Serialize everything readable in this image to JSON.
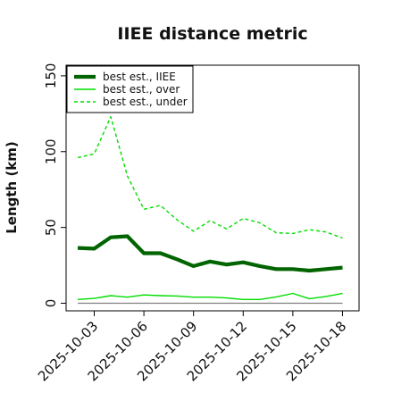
{
  "chart_data": {
    "type": "line",
    "title": "IIEE distance metric",
    "ylabel": "Length (km)",
    "xlabel": "",
    "x": [
      "2025-10-02",
      "2025-10-03",
      "2025-10-04",
      "2025-10-05",
      "2025-10-06",
      "2025-10-07",
      "2025-10-08",
      "2025-10-09",
      "2025-10-10",
      "2025-10-11",
      "2025-10-12",
      "2025-10-13",
      "2025-10-14",
      "2025-10-15",
      "2025-10-16",
      "2025-10-17",
      "2025-10-18"
    ],
    "xticks": [
      "2025-10-03",
      "2025-10-06",
      "2025-10-09",
      "2025-10-12",
      "2025-10-15",
      "2025-10-18"
    ],
    "yticks": [
      0,
      50,
      100,
      150
    ],
    "ylim": [
      -5,
      157
    ],
    "xlim": [
      "2025-10-01T07:12",
      "2025-10-19T00:00"
    ],
    "grid": false,
    "legend_position": "top-left",
    "series": [
      {
        "name": "best est., IIEE",
        "color": "#006400",
        "style": "solid",
        "width": 4.2,
        "values": [
          36.5,
          36,
          43.5,
          44.2,
          33,
          33,
          29,
          24.5,
          27.5,
          25.5,
          27,
          24.5,
          22.5,
          22.5,
          21.5,
          22.5,
          23.5
        ]
      },
      {
        "name": "best est., over",
        "color": "#00dd00",
        "style": "solid",
        "width": 1.4,
        "values": [
          2.5,
          3.2,
          5,
          4,
          5.5,
          5,
          4.8,
          4,
          4,
          3.5,
          2.5,
          2.5,
          4.2,
          6.5,
          3,
          4.5,
          6.5
        ]
      },
      {
        "name": "best est., under",
        "color": "#00dd00",
        "style": "dashed",
        "width": 1.4,
        "values": [
          96,
          98.5,
          123,
          84,
          62,
          64.5,
          55,
          47.5,
          54.5,
          49,
          56,
          53,
          46.5,
          46,
          48.5,
          47,
          43
        ]
      },
      {
        "name": "",
        "color": "#808080",
        "style": "solid",
        "width": 1.2,
        "values": [
          0,
          0,
          0,
          0,
          0,
          0,
          0,
          0,
          0,
          0,
          0,
          0,
          0,
          0,
          0,
          0,
          0
        ]
      }
    ]
  }
}
